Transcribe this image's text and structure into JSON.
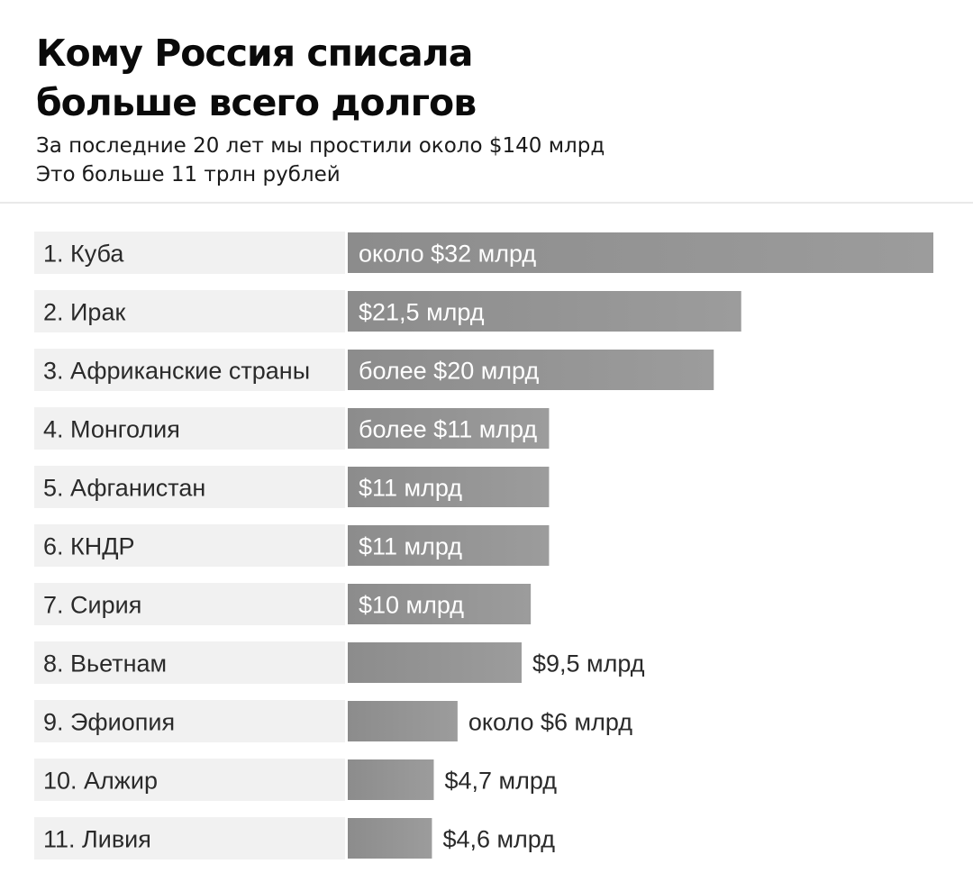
{
  "header": {
    "title_line1": "Кому Россия списала",
    "title_line2": "больше всего долгов",
    "subtitle_line1": "За последние 20 лет мы простили около $140 млрд",
    "subtitle_line2": "Это больше 11 трлн рублей"
  },
  "colors": {
    "bar": "#8c8c8c",
    "bar_light": "#9c9c9c",
    "label_background": "#f1f1f1"
  },
  "chart_data": {
    "type": "bar",
    "orientation": "horizontal",
    "unit": "млрд $",
    "categories": [
      "1. Куба",
      "2. Ирак",
      "3. Африканские страны",
      "4. Монголия",
      "5. Афганистан",
      "6. КНДР",
      "7. Сирия",
      "8. Вьетнам",
      "9. Эфиопия",
      "10. Алжир",
      "11. Ливия"
    ],
    "values": [
      32,
      21.5,
      20,
      11,
      11,
      11,
      10,
      9.5,
      6,
      4.7,
      4.6
    ],
    "value_labels": [
      "около $32 млрд",
      "$21,5 млрд",
      "более $20 млрд",
      "более $11 млрд",
      "$11 млрд",
      "$11 млрд",
      "$10 млрд",
      "$9,5 млрд",
      "около $6 млрд",
      "$4,7 млрд",
      "$4,6 млрд"
    ],
    "grid": false,
    "legend": "none"
  }
}
